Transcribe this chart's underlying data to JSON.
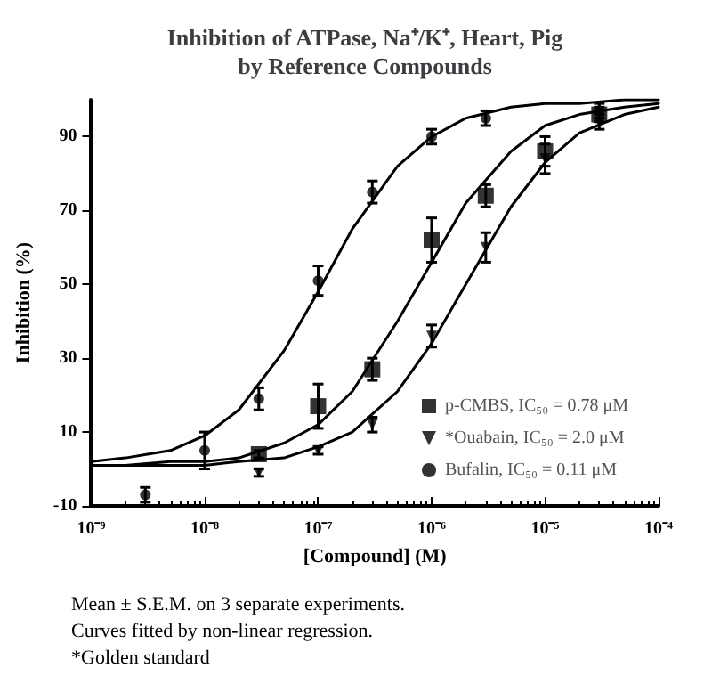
{
  "chart_data": {
    "type": "scatter",
    "title": "Inhibition of ATPase, Na⁺/K⁺, Heart, Pig\nby Reference Compounds",
    "xlabel": "[Compound] (M)",
    "ylabel": "Inhibition (%)",
    "log": "x",
    "xlim": [
      1e-09,
      0.0001
    ],
    "xticks": [
      {
        "value": 1e-09,
        "label": "10⁻⁹"
      },
      {
        "value": 1e-08,
        "label": "10⁻⁸"
      },
      {
        "value": 1e-07,
        "label": "10⁻⁷"
      },
      {
        "value": 1e-06,
        "label": "10⁻⁶"
      },
      {
        "value": 1e-05,
        "label": "10⁻⁵"
      },
      {
        "value": 0.0001,
        "label": "10⁻⁴"
      }
    ],
    "ylim": [
      -10,
      100
    ],
    "yticks": [
      -10,
      10,
      30,
      50,
      70,
      90
    ],
    "grid": false,
    "legend": "bottom right",
    "series": [
      {
        "name": "p-CMBS, IC₅₀ = 0.78 μM",
        "color": "#000000",
        "marker": "square",
        "x": [
          3e-08,
          1e-07,
          3e-07,
          1e-06,
          3e-06,
          1e-05,
          3e-05
        ],
        "values": [
          4,
          17,
          27,
          62,
          74,
          86,
          96
        ],
        "errors": [
          1,
          6,
          3,
          6,
          3,
          4,
          2
        ]
      },
      {
        "name": "*Ouabain, IC₅₀ = 2.0 μM",
        "color": "#000000",
        "marker": "triangle",
        "x": [
          3e-08,
          1e-07,
          3e-07,
          1e-06,
          3e-06,
          1e-05,
          3e-05
        ],
        "values": [
          -1,
          5,
          12,
          36,
          60,
          84,
          94
        ],
        "errors": [
          1,
          1,
          2,
          3,
          4,
          4,
          2
        ]
      },
      {
        "name": "Bufalin, IC₅₀ = 0.11 μM",
        "color": "#000000",
        "marker": "circle",
        "x": [
          3e-09,
          1e-08,
          3e-08,
          1e-07,
          3e-07,
          1e-06,
          3e-06,
          3e-05
        ],
        "values": [
          -7,
          5,
          19,
          51,
          75,
          90,
          95,
          97
        ],
        "errors": [
          2,
          5,
          3,
          4,
          3,
          2,
          2,
          2
        ]
      },
      {
        "type": "line",
        "color": "#000000",
        "marker": "none",
        "x": [
          1e-09,
          2e-09,
          5e-09,
          1e-08,
          2e-08,
          5e-08,
          1e-07,
          2e-07,
          5e-07,
          1e-06,
          2e-06,
          5e-06,
          1e-05,
          2e-05,
          5e-05,
          0.0001
        ],
        "values": [
          1,
          1,
          2,
          2,
          3,
          7,
          12,
          21,
          40,
          56,
          72,
          86,
          93,
          96,
          98,
          99
        ]
      },
      {
        "type": "line",
        "color": "#000000",
        "marker": "none",
        "x": [
          1e-09,
          2e-09,
          5e-09,
          1e-08,
          2e-08,
          5e-08,
          1e-07,
          2e-07,
          5e-07,
          1e-06,
          2e-06,
          5e-06,
          1e-05,
          2e-05,
          5e-05,
          0.0001
        ],
        "values": [
          1,
          1,
          1,
          1,
          2,
          3,
          6,
          10,
          21,
          34,
          50,
          71,
          83,
          91,
          96,
          98
        ]
      },
      {
        "type": "line",
        "color": "#000000",
        "marker": "none",
        "x": [
          1e-09,
          2e-09,
          5e-09,
          1e-08,
          2e-08,
          5e-08,
          1e-07,
          2e-07,
          5e-07,
          1e-06,
          2e-06,
          5e-06,
          1e-05,
          2e-05,
          5e-05,
          0.0001
        ],
        "values": [
          2,
          3,
          5,
          9,
          16,
          32,
          48,
          65,
          82,
          90,
          95,
          98,
          99,
          99,
          100,
          100
        ]
      }
    ],
    "annotations": [
      "Mean ± S.E.M. on 3 separate experiments.",
      "Curves fitted by non-linear regression.",
      "*Golden standard"
    ]
  }
}
